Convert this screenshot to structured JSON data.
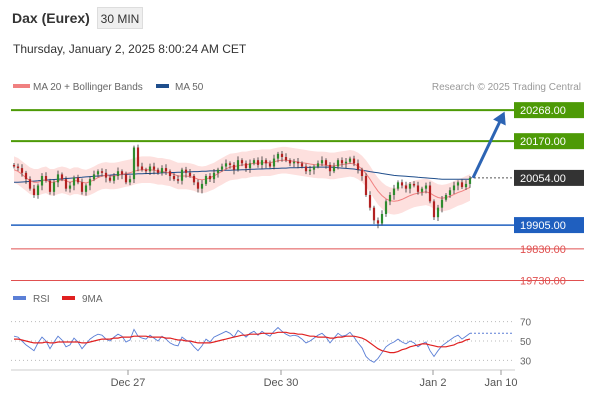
{
  "header": {
    "title": "Dax (Eurex)",
    "timeframe": "30 MIN",
    "datetime": "Thursday, January 2, 2025 8:00:24 AM CET"
  },
  "legend": {
    "ma20_label": "MA 20 + Bollinger Bands",
    "ma50_label": "MA 50",
    "rsi_label": "RSI",
    "ma9_label": "9MA"
  },
  "credit": "Research © 2025 Trading Central",
  "colors": {
    "up_candle": "#2e8b2e",
    "down_candle": "#b22222",
    "ma20": "#f08080",
    "bollinger_fill": "#fde0de",
    "ma50": "#1f4e8c",
    "resistance": "#4d9a06",
    "pivot": "#1f5fbf",
    "support": "#e05050",
    "current_price_box": "#333333",
    "forecast_arrow": "#2c64b4",
    "rsi": "#5b7fd6",
    "rsi_ma": "#e02020"
  },
  "chart_data": [
    {
      "type": "candlestick",
      "title": "Dax (Eurex) 30 MIN",
      "x_tick_labels": [
        "Dec 27",
        "Dec 30",
        "Jan 2",
        "Jan 10"
      ],
      "ylim": [
        19700,
        20300
      ],
      "current_price": 20054.0,
      "levels": [
        {
          "role": "resistance",
          "value": 20268.0,
          "label": "20268.00"
        },
        {
          "role": "resistance",
          "value": 20170.0,
          "label": "20170.00"
        },
        {
          "role": "pivot",
          "value": 19905.0,
          "label": "19905.00"
        },
        {
          "role": "support",
          "value": 19830.0,
          "label": "19830.00"
        },
        {
          "role": "support",
          "value": 19730.0,
          "label": "19730.00"
        }
      ],
      "current_label": "20054.00",
      "forecast": {
        "from": 20054,
        "to": 20265
      },
      "closes": [
        20090,
        20085,
        20070,
        20050,
        20020,
        20000,
        20030,
        20060,
        20045,
        20010,
        20040,
        20065,
        20050,
        20020,
        20030,
        20055,
        20040,
        20010,
        20030,
        20050,
        20065,
        20075,
        20070,
        20055,
        20045,
        20060,
        20075,
        20065,
        20040,
        20050,
        20150,
        20090,
        20080,
        20075,
        20090,
        20080,
        20070,
        20085,
        20075,
        20060,
        20050,
        20045,
        20080,
        20070,
        20060,
        20040,
        20020,
        20035,
        20060,
        20050,
        20070,
        20080,
        20090,
        20100,
        20095,
        20080,
        20110,
        20100,
        20085,
        20100,
        20110,
        20095,
        20110,
        20100,
        20090,
        20115,
        20130,
        20120,
        20110,
        20100,
        20105,
        20100,
        20090,
        20075,
        20080,
        20090,
        20100,
        20110,
        20095,
        20075,
        20090,
        20110,
        20100,
        20105,
        20115,
        20100,
        20080,
        20060,
        20000,
        19960,
        19920,
        19910,
        19940,
        19980,
        20000,
        20020,
        20040,
        20030,
        20020,
        20035,
        20030,
        20010,
        20020,
        20030,
        19980,
        19930,
        19960,
        19985,
        20000,
        20015,
        20030,
        20040,
        20025,
        20035,
        20054
      ],
      "ma20_approx": [
        20080,
        20075,
        20065,
        20055,
        20045,
        20040,
        20040,
        20045,
        20048,
        20040,
        20040,
        20045,
        20048,
        20045,
        20040,
        20045,
        20045,
        20040,
        20038,
        20042,
        20048,
        20055,
        20060,
        20062,
        20060,
        20060,
        20062,
        20065,
        20068,
        20070,
        20075,
        20078,
        20080,
        20080,
        20080,
        20078,
        20075,
        20075,
        20072,
        20070,
        20065,
        20060,
        20060,
        20060,
        20058,
        20055,
        20050,
        20048,
        20050,
        20055,
        20060,
        20068,
        20075,
        20082,
        20088,
        20090,
        20092,
        20095,
        20095,
        20098,
        20100,
        20100,
        20102,
        20102,
        20102,
        20105,
        20108,
        20110,
        20110,
        20108,
        20106,
        20104,
        20102,
        20100,
        20098,
        20096,
        20095,
        20095,
        20094,
        20092,
        20092,
        20094,
        20096,
        20098,
        20100,
        20098,
        20092,
        20082,
        20068,
        20050,
        20030,
        20012,
        19998,
        19988,
        19982,
        19980,
        19982,
        19986,
        19992,
        19998,
        20003,
        20006,
        20008,
        20010,
        20006,
        19998,
        19992,
        19990,
        19992,
        19996,
        20002,
        20008,
        20012,
        20018,
        20024
      ],
      "ma50_approx": [
        20040,
        20040,
        20041,
        20042,
        20043,
        20044,
        20045,
        20046,
        20047,
        20048,
        20049,
        20050,
        20051,
        20052,
        20053,
        20054,
        20055,
        20056,
        20057,
        20058,
        20059,
        20060,
        20061,
        20062,
        20063,
        20064,
        20064,
        20065,
        20065,
        20066,
        20066,
        20067,
        20067,
        20068,
        20068,
        20069,
        20069,
        20070,
        20070,
        20071,
        20071,
        20072,
        20072,
        20073,
        20073,
        20074,
        20074,
        20075,
        20075,
        20076,
        20076,
        20077,
        20077,
        20078,
        20078,
        20079,
        20079,
        20080,
        20080,
        20081,
        20081,
        20082,
        20082,
        20083,
        20083,
        20084,
        20084,
        20085,
        20085,
        20086,
        20086,
        20086,
        20087,
        20087,
        20087,
        20088,
        20088,
        20088,
        20088,
        20088,
        20087,
        20086,
        20085,
        20084,
        20083,
        20082,
        20080,
        20078,
        20076,
        20074,
        20072,
        20070,
        20068,
        20066,
        20064,
        20062,
        20061,
        20060,
        20059,
        20058,
        20057,
        20056,
        20055,
        20054,
        20053,
        20052,
        20051,
        20050,
        20050,
        20050,
        20050,
        20050,
        20050,
        20050,
        20050
      ]
    },
    {
      "type": "line",
      "title": "RSI",
      "ylim": [
        20,
        80
      ],
      "y_ticks": [
        70,
        50,
        30
      ],
      "x_tick_labels": [
        "Dec 27",
        "Dec 30",
        "Jan 2",
        "Jan 10"
      ],
      "series": [
        {
          "name": "RSI",
          "values": [
            55,
            54,
            50,
            46,
            43,
            40,
            48,
            54,
            50,
            42,
            49,
            55,
            51,
            44,
            46,
            53,
            49,
            42,
            47,
            52,
            55,
            57,
            56,
            52,
            50,
            54,
            57,
            55,
            49,
            51,
            62,
            55,
            53,
            52,
            56,
            53,
            50,
            55,
            52,
            48,
            46,
            45,
            54,
            51,
            49,
            44,
            40,
            45,
            52,
            49,
            54,
            56,
            58,
            60,
            58,
            54,
            61,
            58,
            54,
            58,
            60,
            56,
            60,
            57,
            55,
            60,
            64,
            60,
            57,
            55,
            56,
            55,
            52,
            48,
            50,
            53,
            56,
            58,
            54,
            48,
            53,
            58,
            55,
            56,
            59,
            54,
            48,
            43,
            34,
            30,
            28,
            32,
            38,
            44,
            47,
            49,
            52,
            49,
            47,
            50,
            48,
            44,
            47,
            49,
            40,
            34,
            40,
            45,
            48,
            51,
            54,
            56,
            52,
            55,
            58
          ]
        },
        {
          "name": "9MA",
          "values": [
            52,
            52,
            51,
            50,
            49,
            48,
            48,
            48,
            49,
            48,
            48,
            49,
            49,
            49,
            49,
            49,
            49,
            48,
            48,
            49,
            50,
            51,
            52,
            52,
            52,
            53,
            53,
            54,
            54,
            54,
            55,
            55,
            55,
            55,
            54,
            54,
            54,
            54,
            53,
            53,
            52,
            51,
            51,
            50,
            50,
            49,
            48,
            48,
            48,
            48,
            49,
            50,
            51,
            52,
            53,
            54,
            55,
            56,
            56,
            57,
            57,
            57,
            58,
            58,
            58,
            58,
            59,
            59,
            59,
            58,
            58,
            57,
            57,
            56,
            55,
            55,
            54,
            54,
            54,
            53,
            53,
            54,
            54,
            55,
            55,
            55,
            54,
            53,
            51,
            48,
            45,
            42,
            40,
            39,
            38,
            38,
            39,
            41,
            42,
            44,
            45,
            46,
            47,
            47,
            46,
            45,
            44,
            44,
            44,
            45,
            46,
            48,
            49,
            51,
            52
          ]
        }
      ]
    }
  ]
}
